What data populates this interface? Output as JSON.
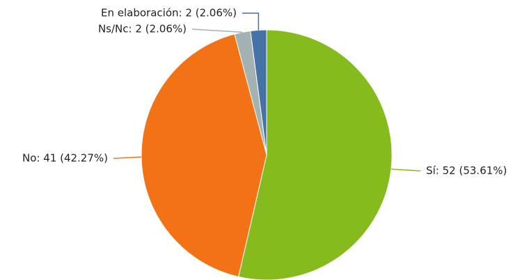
{
  "chart_data": {
    "type": "pie",
    "categories": [
      "Sí",
      "No",
      "Ns/Nc",
      "En elaboración"
    ],
    "values": [
      52,
      41,
      2,
      2
    ],
    "value_labels": [
      "Sí: 52 (53.61%)",
      "No: 41 (42.27%)",
      "Ns/Nc: 2 (2.06%)",
      "En elaboración: 2 (2.06%)"
    ],
    "colors": [
      "#85bb1c",
      "#f47216",
      "#a4b2b2",
      "#4572a7"
    ]
  }
}
